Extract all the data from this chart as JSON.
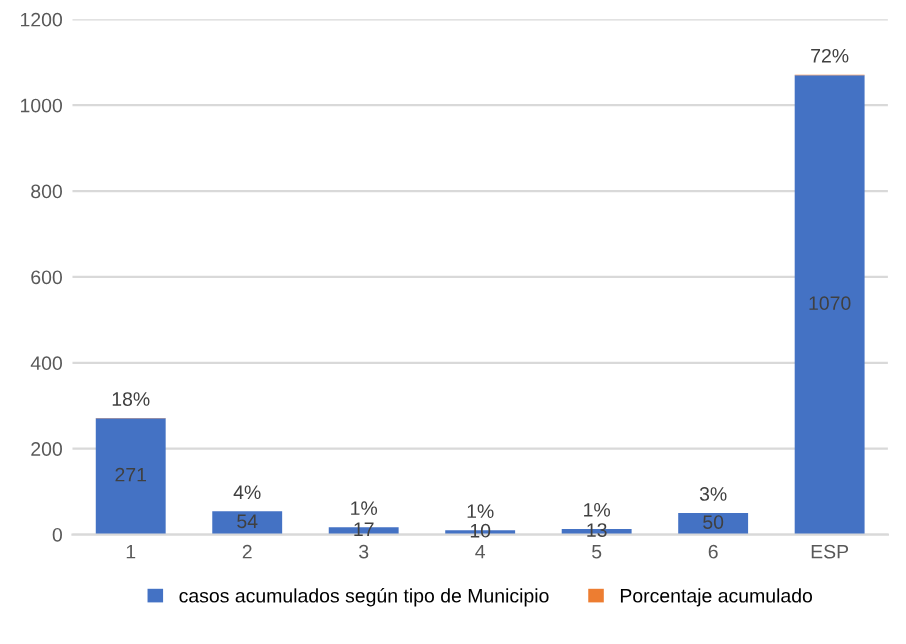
{
  "chart_data": {
    "type": "bar",
    "stacked": true,
    "categories": [
      "1",
      "2",
      "3",
      "4",
      "5",
      "6",
      "ESP"
    ],
    "series": [
      {
        "name": "casos acumulados según tipo de Municipio",
        "color": "#4472c4",
        "values": [
          271,
          54,
          17,
          10,
          13,
          50,
          1070
        ],
        "value_labels": [
          "271",
          "54",
          "17",
          "10",
          "13",
          "50",
          "1070"
        ]
      },
      {
        "name": "Porcentaje acumulado",
        "color": "#ed7d31",
        "values": [
          0.18,
          0.04,
          0.01,
          0.01,
          0.01,
          0.03,
          0.72
        ],
        "value_labels": [
          "18%",
          "4%",
          "1%",
          "1%",
          "1%",
          "3%",
          "72%"
        ]
      }
    ],
    "ylim": [
      0,
      1200
    ],
    "yticks": [
      0,
      200,
      400,
      600,
      800,
      1000,
      1200
    ],
    "grid": "y",
    "legend": "bottom"
  }
}
